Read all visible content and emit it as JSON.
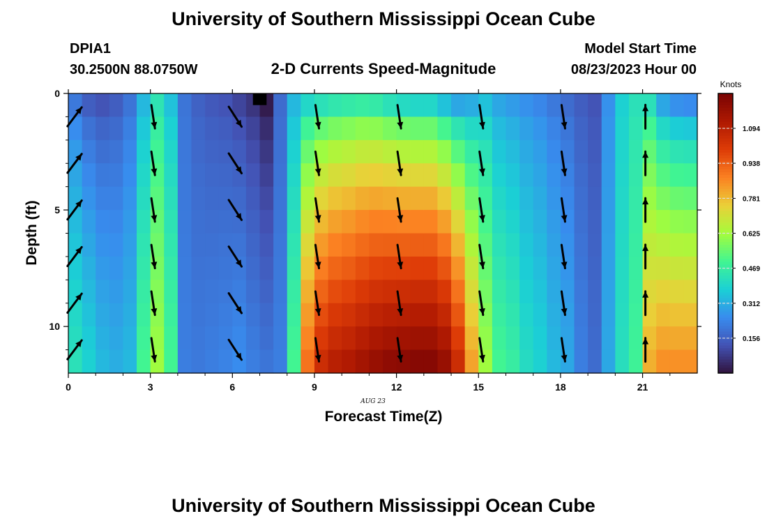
{
  "header": {
    "main_title": "University of Southern Mississippi Ocean Cube",
    "station": "DPIA1",
    "coordinates": "30.2500N  88.0750W",
    "plot_title": "2-D Currents Speed-Magnitude",
    "model_start_label": "Model Start Time",
    "model_start_value": "08/23/2023 Hour 00"
  },
  "footer": {
    "main_title": "University of Southern Mississippi Ocean Cube"
  },
  "chart_data": {
    "type": "heatmap",
    "title": "2-D Currents Speed-Magnitude",
    "xlabel": "Forecast Time(Z)",
    "ylabel": "Depth (ft)",
    "x_date_label": "AUG 23",
    "xlim": [
      0,
      23
    ],
    "ylim": [
      0,
      12
    ],
    "y_inverted": true,
    "x_ticks": [
      "0",
      "3",
      "6",
      "9",
      "12",
      "15",
      "18",
      "21"
    ],
    "y_ticks": [
      "0",
      "5",
      "10"
    ],
    "colorbar": {
      "unit": "Knots",
      "range": [
        0.0,
        1.25
      ],
      "ticks": [
        "0.156",
        "0.312",
        "0.469",
        "0.625",
        "0.781",
        "0.938",
        "1.094"
      ],
      "tick_values": [
        0.156,
        0.312,
        0.469,
        0.625,
        0.781,
        0.938,
        1.094
      ]
    },
    "x": [
      0,
      0.5,
      1,
      1.5,
      2,
      2.5,
      3,
      3.5,
      4,
      4.5,
      5,
      5.5,
      6,
      6.5,
      7,
      7.5,
      8,
      8.5,
      9,
      9.5,
      10,
      10.5,
      11,
      11.5,
      12,
      12.5,
      13,
      13.5,
      14,
      14.5,
      15,
      15.5,
      16,
      16.5,
      17,
      17.5,
      18,
      18.5,
      19,
      19.5,
      20,
      20.5,
      21,
      21.5,
      22,
      22.5
    ],
    "y": [
      0,
      1,
      2,
      3,
      4,
      5,
      6,
      7,
      8,
      9,
      10,
      11
    ],
    "speed_profile": {
      "hours": [
        0,
        0.5,
        1,
        1.5,
        2,
        2.5,
        3,
        3.5,
        4,
        4.5,
        5,
        5.5,
        6,
        6.5,
        7,
        7.5,
        8,
        8.5,
        9,
        9.5,
        10,
        10.5,
        11,
        11.5,
        12,
        12.5,
        13,
        13.5,
        14,
        14.5,
        15,
        15.5,
        16,
        16.5,
        17,
        17.5,
        18,
        18.5,
        19,
        19.5,
        20,
        20.5,
        21,
        21.5,
        22,
        22.5
      ],
      "surface_speed": [
        0.21,
        0.15,
        0.13,
        0.15,
        0.2,
        0.33,
        0.44,
        0.35,
        0.2,
        0.16,
        0.14,
        0.13,
        0.1,
        0.07,
        0.02,
        0.18,
        0.33,
        0.4,
        0.43,
        0.45,
        0.46,
        0.47,
        0.46,
        0.43,
        0.41,
        0.4,
        0.4,
        0.35,
        0.3,
        0.31,
        0.35,
        0.3,
        0.28,
        0.26,
        0.24,
        0.21,
        0.18,
        0.15,
        0.13,
        0.26,
        0.38,
        0.43,
        0.43,
        0.3,
        0.26,
        0.25
      ],
      "bottom_speed": [
        0.43,
        0.38,
        0.33,
        0.31,
        0.33,
        0.5,
        0.62,
        0.5,
        0.22,
        0.21,
        0.22,
        0.23,
        0.25,
        0.22,
        0.2,
        0.22,
        0.5,
        0.9,
        1.05,
        1.1,
        1.12,
        1.15,
        1.18,
        1.2,
        1.21,
        1.22,
        1.22,
        1.18,
        1.05,
        0.82,
        0.62,
        0.5,
        0.47,
        0.41,
        0.38,
        0.33,
        0.3,
        0.22,
        0.18,
        0.3,
        0.42,
        0.49,
        0.8,
        0.85,
        0.85,
        0.85
      ]
    },
    "vectors": {
      "hours": [
        0,
        3,
        6,
        9,
        12,
        15,
        18,
        21
      ],
      "depths": [
        1,
        3,
        5,
        7,
        9,
        11
      ],
      "directions": [
        "NE",
        "S",
        "SE",
        "S",
        "S",
        "S",
        "S",
        "N"
      ]
    }
  },
  "colors": {
    "missing_cell": "#000000",
    "colorbar_top": "#7f0000",
    "colorbar_bottom": "#30123b"
  }
}
